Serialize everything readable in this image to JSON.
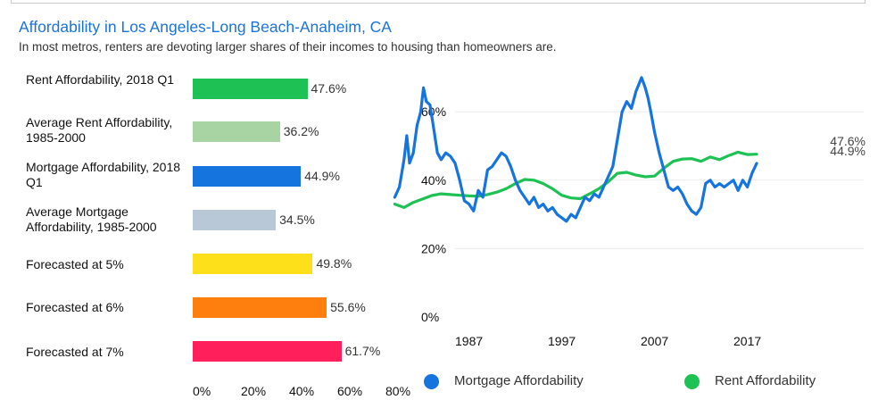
{
  "title": "Affordability in Los Angeles-Long Beach-Anaheim, CA",
  "subtitle": "In most metros, renters are devoting larger shares of their incomes to housing than homeowners are.",
  "chart_data": [
    {
      "type": "bar",
      "orientation": "horizontal",
      "categories": [
        "Rent Affordability, 2018 Q1",
        "Average Rent Affordability, 1985-2000",
        "Mortgage Affordability, 2018 Q1",
        "Average Mortgage Affordability, 1985-2000",
        "Forecasted at 5%",
        "Forecasted at 6%",
        "Forecasted at 7%"
      ],
      "values": [
        47.6,
        36.2,
        44.9,
        34.5,
        49.8,
        55.6,
        61.7
      ],
      "value_labels": [
        "47.6%",
        "36.2%",
        "44.9%",
        "34.5%",
        "49.8%",
        "55.6%",
        "61.7%"
      ],
      "colors": [
        "#1ec254",
        "#a8d4a4",
        "#1574de",
        "#b9c8d6",
        "#fde01a",
        "#ff7f0e",
        "#ff1f5a"
      ],
      "xlim": [
        0,
        80
      ],
      "x_ticks": [
        "0%",
        "20%",
        "40%",
        "60%",
        "80%"
      ],
      "grid": false
    },
    {
      "type": "line",
      "x_ticks": [
        "1987",
        "1997",
        "2007",
        "2017"
      ],
      "x_tick_values": [
        1987,
        1997,
        2007,
        2017
      ],
      "y_ticks": [
        "0%",
        "20%",
        "40%",
        "60%"
      ],
      "y_tick_values": [
        0,
        20,
        40,
        60
      ],
      "xlim": [
        1978,
        2019
      ],
      "ylim": [
        0,
        72
      ],
      "grid": true,
      "legend": "bottom",
      "end_labels": [
        "47.6%",
        "44.9%"
      ],
      "series": [
        {
          "name": "Mortgage Affordability",
          "color": "#1574de",
          "x": [
            1979,
            1979.5,
            1980,
            1980.3,
            1980.6,
            1981,
            1981.4,
            1981.8,
            1982.1,
            1982.4,
            1982.8,
            1983.2,
            1983.6,
            1984,
            1984.5,
            1985,
            1985.5,
            1986,
            1986.5,
            1987,
            1987.5,
            1988,
            1988.5,
            1989,
            1989.5,
            1990,
            1990.5,
            1991,
            1991.5,
            1992,
            1992.5,
            1993,
            1993.5,
            1994,
            1994.5,
            1995,
            1995.5,
            1996,
            1996.5,
            1997,
            1997.5,
            1998,
            1998.5,
            1999,
            1999.5,
            2000,
            2000.5,
            2001,
            2001.5,
            2002,
            2002.5,
            2003,
            2003.5,
            2004,
            2004.5,
            2005,
            2005.3,
            2005.6,
            2006,
            2006.3,
            2006.6,
            2007,
            2007.5,
            2008,
            2008.5,
            2009,
            2009.5,
            2010,
            2010.5,
            2011,
            2011.5,
            2012,
            2012.5,
            2013,
            2013.5,
            2014,
            2014.5,
            2015,
            2015.5,
            2016,
            2016.5,
            2017,
            2017.5,
            2018
          ],
          "y": [
            35,
            38,
            46,
            53,
            45,
            48,
            56,
            60,
            67,
            63,
            62,
            55,
            48,
            46,
            48,
            47,
            45,
            40,
            34,
            33,
            31,
            37,
            35,
            43,
            44,
            46,
            48,
            47,
            44,
            40,
            37,
            35,
            33,
            35,
            32,
            33,
            31,
            32,
            30,
            29,
            28,
            30,
            29,
            32,
            35,
            34,
            36,
            35,
            38,
            41,
            44,
            52,
            60,
            63,
            61,
            66,
            68,
            70,
            67,
            64,
            60,
            54,
            48,
            43,
            38,
            37,
            38,
            36,
            33,
            31,
            30,
            32,
            39,
            40,
            38,
            39,
            38,
            39,
            40,
            37,
            40,
            38,
            42,
            44.9
          ]
        },
        {
          "name": "Rent Affordability",
          "color": "#1ec254",
          "x": [
            1979,
            1980,
            1981,
            1982,
            1983,
            1984,
            1985,
            1986,
            1987,
            1988,
            1989,
            1990,
            1991,
            1992,
            1993,
            1994,
            1995,
            1996,
            1997,
            1998,
            1999,
            2000,
            2001,
            2002,
            2003,
            2004,
            2005,
            2006,
            2007,
            2008,
            2009,
            2010,
            2011,
            2012,
            2013,
            2014,
            2015,
            2016,
            2017,
            2018
          ],
          "y": [
            33,
            32,
            33.5,
            34.5,
            35.5,
            36,
            35.8,
            35.6,
            35.4,
            35.3,
            35.8,
            36.5,
            37.5,
            39,
            40.2,
            40,
            39,
            37.5,
            35.6,
            34.8,
            34.6,
            36,
            37.5,
            39.5,
            42,
            42.3,
            41.5,
            41,
            41.2,
            43.5,
            45.5,
            46.2,
            46.3,
            45.5,
            46.8,
            46,
            47.2,
            48.2,
            47.5,
            47.6
          ]
        }
      ]
    }
  ],
  "legend": {
    "mortgage_label": "Mortgage Affordability",
    "rent_label": "Rent Affordability"
  }
}
